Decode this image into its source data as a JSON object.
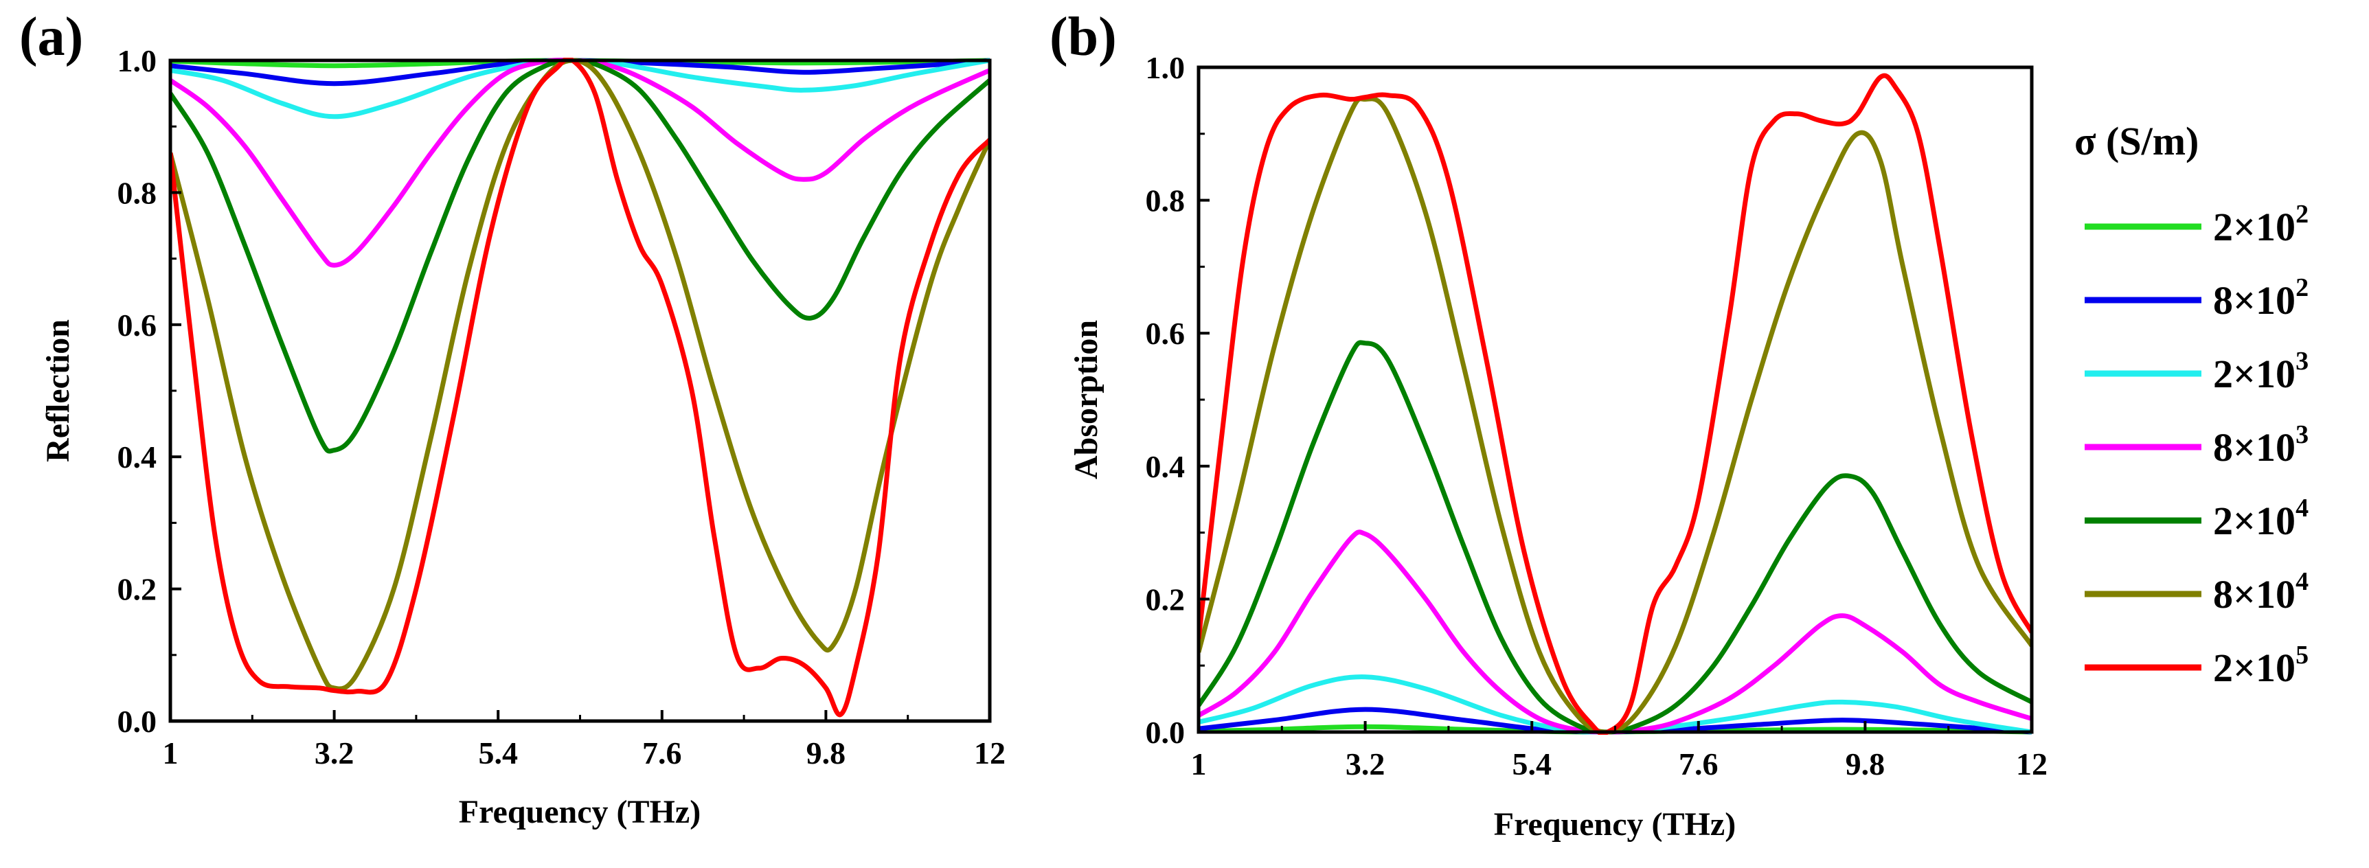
{
  "chart_data": [
    {
      "type": "line",
      "panel_label": "(a)",
      "xlabel": "Frequency (THz)",
      "ylabel": "Reflection",
      "xlim": [
        1,
        12
      ],
      "ylim": [
        0,
        1
      ],
      "xticks": [
        1,
        3.2,
        5.4,
        7.6,
        9.8,
        12
      ],
      "xtick_labels": [
        "1",
        "3.2",
        "5.4",
        "7.6",
        "9.8",
        "12"
      ],
      "yticks": [
        0,
        0.2,
        0.4,
        0.6,
        0.8,
        1.0
      ],
      "ytick_labels": [
        "0.0",
        "0.2",
        "0.4",
        "0.6",
        "0.8",
        "1.0"
      ],
      "series": [
        {
          "name": "2×10²",
          "color": "#22dd22",
          "x": [
            1,
            2,
            3.2,
            4.5,
            5.5,
            6.3,
            7.2,
            8.5,
            9.5,
            10.5,
            11.5,
            12
          ],
          "y": [
            0.999,
            0.995,
            0.992,
            0.995,
            0.999,
            1.0,
            0.999,
            0.997,
            0.996,
            0.997,
            0.999,
            1.0
          ]
        },
        {
          "name": "8×10²",
          "color": "#0000ee",
          "x": [
            1,
            2,
            3.2,
            4.5,
            5.5,
            6.3,
            7.2,
            8.5,
            9.5,
            10.5,
            11.5,
            12
          ],
          "y": [
            0.992,
            0.98,
            0.965,
            0.98,
            0.995,
            1.0,
            0.997,
            0.99,
            0.982,
            0.988,
            0.995,
            1.0
          ]
        },
        {
          "name": "2×10³",
          "color": "#22eeee",
          "x": [
            1,
            1.7,
            2.5,
            3.2,
            4,
            5,
            5.8,
            6.3,
            7,
            8,
            9,
            9.5,
            10.2,
            11,
            12
          ],
          "y": [
            0.985,
            0.97,
            0.935,
            0.915,
            0.935,
            0.975,
            0.995,
            1.0,
            0.995,
            0.975,
            0.96,
            0.955,
            0.962,
            0.98,
            1.0
          ]
        },
        {
          "name": "8×10³",
          "color": "#ff00ff",
          "x": [
            1,
            1.5,
            2,
            2.5,
            3,
            3.2,
            3.5,
            4,
            4.5,
            5,
            5.5,
            6,
            6.4,
            6.8,
            7.3,
            8,
            8.6,
            9.2,
            9.5,
            9.8,
            10.3,
            10.8,
            11.3,
            12
          ],
          "y": [
            0.97,
            0.93,
            0.87,
            0.79,
            0.71,
            0.69,
            0.71,
            0.78,
            0.86,
            0.93,
            0.98,
            0.998,
            1.0,
            0.995,
            0.975,
            0.93,
            0.875,
            0.83,
            0.82,
            0.83,
            0.88,
            0.92,
            0.95,
            0.985
          ]
        },
        {
          "name": "2×10⁴",
          "color": "#008000",
          "x": [
            1,
            1.5,
            2,
            2.5,
            3,
            3.2,
            3.5,
            4,
            4.5,
            5,
            5.5,
            6,
            6.4,
            6.8,
            7.3,
            7.8,
            8.3,
            8.8,
            9.3,
            9.6,
            9.9,
            10.3,
            10.8,
            11.3,
            12
          ],
          "y": [
            0.95,
            0.86,
            0.72,
            0.57,
            0.43,
            0.41,
            0.44,
            0.56,
            0.71,
            0.85,
            0.95,
            0.99,
            1.0,
            0.99,
            0.955,
            0.88,
            0.79,
            0.7,
            0.63,
            0.61,
            0.64,
            0.73,
            0.83,
            0.9,
            0.97
          ]
        },
        {
          "name": "8×10⁴",
          "color": "#808000",
          "x": [
            1,
            1.5,
            2,
            2.5,
            3,
            3.2,
            3.5,
            4,
            4.5,
            5,
            5.5,
            6,
            6.4,
            6.8,
            7.3,
            7.8,
            8.3,
            8.8,
            9.3,
            9.7,
            9.9,
            10.2,
            10.6,
            11.2,
            11.6,
            12
          ],
          "y": [
            0.86,
            0.64,
            0.4,
            0.22,
            0.08,
            0.05,
            0.07,
            0.2,
            0.43,
            0.68,
            0.87,
            0.97,
            1.0,
            0.97,
            0.86,
            0.7,
            0.5,
            0.32,
            0.19,
            0.12,
            0.115,
            0.2,
            0.4,
            0.66,
            0.78,
            0.88
          ]
        },
        {
          "name": "2×10⁵",
          "color": "#ff0000",
          "x": [
            1,
            1.3,
            1.6,
            1.9,
            2.2,
            2.6,
            3,
            3.2,
            3.5,
            3.9,
            4.3,
            4.8,
            5.3,
            5.8,
            6.2,
            6.4,
            6.7,
            7,
            7.3,
            7.6,
            8,
            8.3,
            8.6,
            8.9,
            9.2,
            9.5,
            9.8,
            10,
            10.2,
            10.5,
            10.8,
            11.2,
            11.6,
            12
          ],
          "y": [
            0.86,
            0.56,
            0.28,
            0.12,
            0.06,
            0.052,
            0.05,
            0.046,
            0.045,
            0.06,
            0.2,
            0.46,
            0.74,
            0.93,
            0.99,
            1.0,
            0.95,
            0.82,
            0.72,
            0.66,
            0.5,
            0.28,
            0.1,
            0.08,
            0.095,
            0.085,
            0.05,
            0.01,
            0.08,
            0.25,
            0.55,
            0.72,
            0.83,
            0.88
          ]
        }
      ]
    },
    {
      "type": "line",
      "panel_label": "(b)",
      "xlabel": "Frequency (THz)",
      "ylabel": "Absorption",
      "xlim": [
        1,
        12
      ],
      "ylim": [
        0,
        1
      ],
      "xticks": [
        1,
        3.2,
        5.4,
        7.6,
        9.8,
        12
      ],
      "xtick_labels": [
        "1",
        "3.2",
        "5.4",
        "7.6",
        "9.8",
        "12"
      ],
      "yticks": [
        0,
        0.2,
        0.4,
        0.6,
        0.8,
        1.0
      ],
      "ytick_labels": [
        "0.0",
        "0.2",
        "0.4",
        "0.6",
        "0.8",
        "1.0"
      ],
      "series": [
        {
          "name": "2×10²",
          "color": "#22dd22",
          "x": [
            1,
            2,
            3.2,
            4.5,
            5.5,
            6.3,
            7.2,
            8.5,
            9.5,
            10.5,
            11.5,
            12
          ],
          "y": [
            0.001,
            0.004,
            0.008,
            0.004,
            0.001,
            0,
            0.001,
            0.003,
            0.004,
            0.003,
            0.001,
            0
          ]
        },
        {
          "name": "8×10²",
          "color": "#0000ee",
          "x": [
            1,
            2,
            3.2,
            4.5,
            5.5,
            6.3,
            7.2,
            8.5,
            9.5,
            10.5,
            11.5,
            12
          ],
          "y": [
            0.005,
            0.018,
            0.034,
            0.018,
            0.004,
            0,
            0.003,
            0.012,
            0.018,
            0.012,
            0.004,
            0
          ]
        },
        {
          "name": "2×10³",
          "color": "#22eeee",
          "x": [
            1,
            1.7,
            2.5,
            3.2,
            4,
            5,
            5.8,
            6.3,
            7,
            8,
            9,
            9.5,
            10.2,
            11,
            12
          ],
          "y": [
            0.015,
            0.035,
            0.07,
            0.083,
            0.065,
            0.025,
            0.004,
            0,
            0.005,
            0.02,
            0.04,
            0.045,
            0.038,
            0.018,
            0
          ]
        },
        {
          "name": "8×10³",
          "color": "#ff00ff",
          "x": [
            1,
            1.5,
            2,
            2.5,
            3,
            3.2,
            3.5,
            4,
            4.5,
            5,
            5.5,
            6,
            6.4,
            6.8,
            7.3,
            8,
            8.6,
            9.2,
            9.5,
            9.8,
            10.3,
            10.8,
            11.3,
            12
          ],
          "y": [
            0.025,
            0.06,
            0.12,
            0.21,
            0.29,
            0.298,
            0.27,
            0.2,
            0.12,
            0.06,
            0.02,
            0.003,
            0,
            0.003,
            0.015,
            0.05,
            0.1,
            0.16,
            0.175,
            0.16,
            0.12,
            0.07,
            0.045,
            0.02
          ]
        },
        {
          "name": "2×10⁴",
          "color": "#008000",
          "x": [
            1,
            1.5,
            2,
            2.5,
            3,
            3.2,
            3.5,
            4,
            4.5,
            5,
            5.5,
            6,
            6.4,
            6.8,
            7.3,
            7.8,
            8.3,
            8.8,
            9.3,
            9.6,
            9.9,
            10.3,
            10.8,
            11.3,
            12
          ],
          "y": [
            0.04,
            0.13,
            0.27,
            0.43,
            0.565,
            0.585,
            0.56,
            0.43,
            0.28,
            0.14,
            0.05,
            0.01,
            0,
            0.01,
            0.04,
            0.1,
            0.19,
            0.29,
            0.37,
            0.385,
            0.36,
            0.27,
            0.16,
            0.09,
            0.045
          ]
        },
        {
          "name": "8×10⁴",
          "color": "#808000",
          "x": [
            1,
            1.5,
            2,
            2.5,
            3,
            3.2,
            3.5,
            4,
            4.5,
            5,
            5.5,
            6,
            6.4,
            6.8,
            7.3,
            7.8,
            8.3,
            8.8,
            9.3,
            9.7,
            10,
            10.3,
            10.8,
            11.3,
            12
          ],
          "y": [
            0.12,
            0.34,
            0.58,
            0.78,
            0.93,
            0.952,
            0.93,
            0.78,
            0.55,
            0.31,
            0.12,
            0.025,
            0,
            0.03,
            0.13,
            0.3,
            0.5,
            0.68,
            0.82,
            0.9,
            0.86,
            0.7,
            0.45,
            0.25,
            0.13
          ]
        },
        {
          "name": "2×10⁵",
          "color": "#ff0000",
          "x": [
            1,
            1.3,
            1.6,
            1.9,
            2.2,
            2.6,
            3,
            3.2,
            3.5,
            3.9,
            4.3,
            4.8,
            5.3,
            5.8,
            6.2,
            6.4,
            6.7,
            7,
            7.3,
            7.6,
            8,
            8.3,
            8.6,
            8.9,
            9.2,
            9.5,
            9.7,
            10,
            10.2,
            10.5,
            10.8,
            11.2,
            11.6,
            12
          ],
          "y": [
            0.14,
            0.44,
            0.72,
            0.88,
            0.94,
            0.958,
            0.952,
            0.955,
            0.958,
            0.94,
            0.83,
            0.56,
            0.27,
            0.08,
            0.01,
            0,
            0.04,
            0.19,
            0.25,
            0.35,
            0.62,
            0.85,
            0.92,
            0.93,
            0.92,
            0.915,
            0.93,
            0.985,
            0.97,
            0.9,
            0.72,
            0.45,
            0.24,
            0.15
          ]
        }
      ]
    }
  ],
  "legend": {
    "title": "σ (S/m)",
    "entries": [
      "2×10",
      "8×10",
      "2×10",
      "8×10",
      "2×10",
      "8×10",
      "2×10"
    ],
    "exponents": [
      "2",
      "2",
      "3",
      "3",
      "4",
      "4",
      "5"
    ],
    "colors": [
      "#22dd22",
      "#0000ee",
      "#22eeee",
      "#ff00ff",
      "#008000",
      "#808000",
      "#ff0000"
    ]
  }
}
